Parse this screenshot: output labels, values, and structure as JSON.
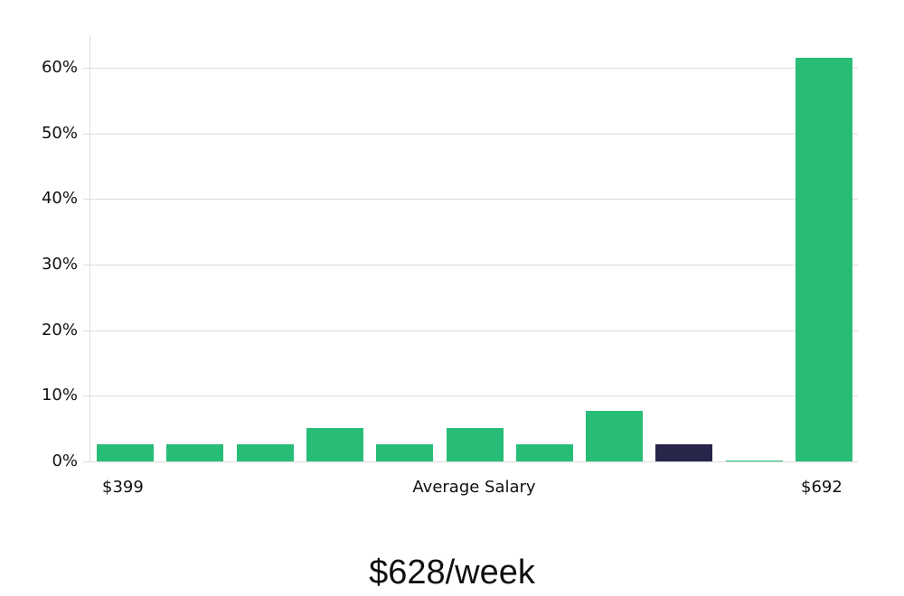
{
  "chart_data": {
    "type": "bar",
    "title": "",
    "xlabel": "Average Salary",
    "ylabel": "",
    "x_range_labels": {
      "min": "$399",
      "max": "$692"
    },
    "categories": [
      "bin1",
      "bin2",
      "bin3",
      "bin4",
      "bin5",
      "bin6",
      "bin7",
      "bin8",
      "bin9",
      "bin10",
      "bin11"
    ],
    "values": [
      2.6,
      2.6,
      2.6,
      5.1,
      2.6,
      5.1,
      2.6,
      7.7,
      2.6,
      0.15,
      61.5
    ],
    "highlight_index": 8,
    "colors": {
      "default": "#28bd77",
      "highlight": "#27264a",
      "grid": "#dcdcdc"
    },
    "yticks": [
      "0%",
      "10%",
      "20%",
      "30%",
      "40%",
      "50%",
      "60%"
    ],
    "ylim": [
      0,
      65
    ],
    "grid": true,
    "legend": null
  },
  "footer": {
    "value": "$628/week"
  }
}
